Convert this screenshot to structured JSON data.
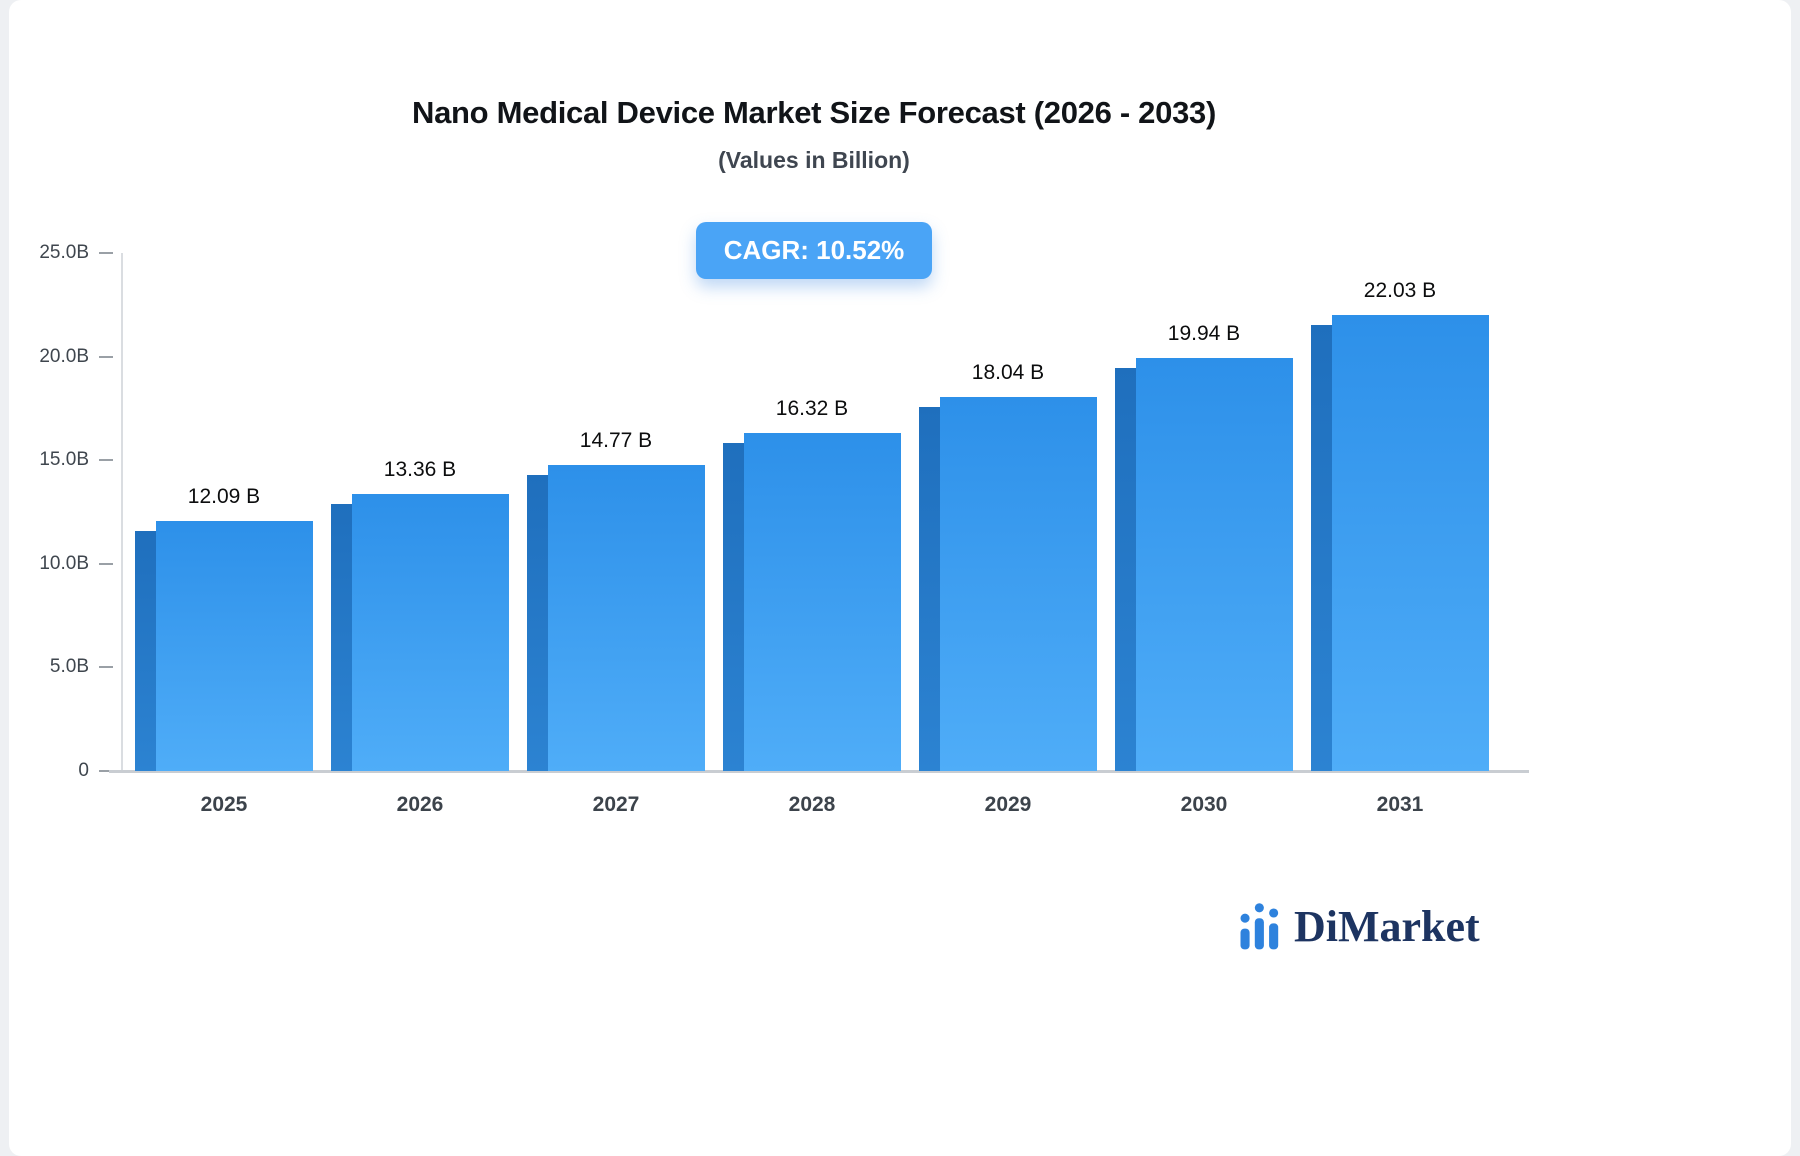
{
  "chart_data": {
    "type": "bar",
    "title": "Nano Medical Device Market Size Forecast (2026 - 2033)",
    "subtitle": "(Values in Billion)",
    "annotation": "CAGR: 10.52%",
    "categories": [
      "2025",
      "2026",
      "2027",
      "2028",
      "2029",
      "2030",
      "2031"
    ],
    "values": [
      12.09,
      13.36,
      14.77,
      16.32,
      18.04,
      19.94,
      22.03
    ],
    "value_labels": [
      "12.09 B",
      "13.36 B",
      "14.77 B",
      "16.32 B",
      "18.04 B",
      "19.94 B",
      "22.03 B"
    ],
    "xlabel": "",
    "ylabel": "",
    "ylim": [
      0,
      25
    ],
    "y_ticks": [
      {
        "value": 0,
        "label": "0"
      },
      {
        "value": 5,
        "label": "5.0B"
      },
      {
        "value": 10,
        "label": "10.0B"
      },
      {
        "value": 15,
        "label": "15.0B"
      },
      {
        "value": 20,
        "label": "20.0B"
      },
      {
        "value": 25,
        "label": "25.0B"
      }
    ],
    "grid": "off",
    "legend": "none"
  },
  "colors": {
    "bar_main_top": "#2D90E9",
    "bar_main_bottom": "#4FADF8",
    "bar_side": "#1F6FBD",
    "badge_bg": "#4AA4F6",
    "logo_navy": "#1D3461",
    "logo_blue": "#2E82DD",
    "axis_line": "#C9CDD2"
  },
  "logo": {
    "text": "DiMarket"
  }
}
